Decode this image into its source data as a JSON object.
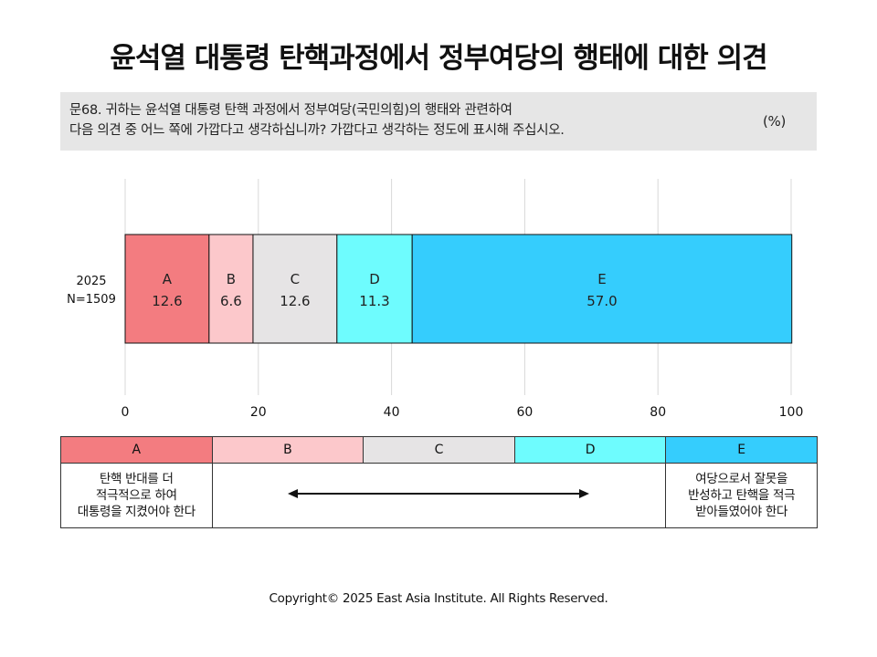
{
  "title": "윤석열 대통령 탄핵과정에서 정부여당의 행태에 대한 의견",
  "question": {
    "line1": "문68. 귀하는 윤석열 대통령 탄핵 과정에서 정부여당(국민의힘)의 행태와 관련하여",
    "line2": "다음 의견 중 어느 쪽에 가깝다고 생각하십니까? 가깝다고 생각하는 정도에 표시해 주십시오.",
    "unit": "(%)"
  },
  "chart_data": {
    "type": "bar",
    "orientation": "horizontal-stacked",
    "categories": [
      "2025\nN=1509"
    ],
    "category_lines": [
      "2025",
      "N=1509"
    ],
    "series": [
      {
        "name": "A",
        "values": [
          12.6
        ],
        "color": "#f37c80"
      },
      {
        "name": "B",
        "values": [
          6.6
        ],
        "color": "#fcc8cb"
      },
      {
        "name": "C",
        "values": [
          12.6
        ],
        "color": "#e6e4e5"
      },
      {
        "name": "D",
        "values": [
          11.3
        ],
        "color": "#6efcfe"
      },
      {
        "name": "E",
        "values": [
          57.0
        ],
        "color": "#35cdfd"
      }
    ],
    "value_labels": [
      "12.6",
      "6.6",
      "12.6",
      "11.3",
      "57.0"
    ],
    "xlim": [
      0,
      100
    ],
    "xticks": [
      0,
      20,
      40,
      60,
      80,
      100
    ],
    "xtick_labels": [
      "0",
      "20",
      "40",
      "60",
      "80",
      "100"
    ],
    "grid": true,
    "legend": "bottom-table"
  },
  "legend_table": {
    "headers": [
      "A",
      "B",
      "C",
      "D",
      "E"
    ],
    "colors": [
      "#f37c80",
      "#fcc8cb",
      "#e6e4e5",
      "#6efcfe",
      "#35cdfd"
    ],
    "left_text": [
      "탄핵 반대를 더",
      "적극적으로 하여",
      "대통령을 지켰어야 한다"
    ],
    "right_text": [
      "여당으로서 잘못을",
      "반성하고 탄핵을 적극",
      "받아들였어야 한다"
    ],
    "arrow_icon": "double-arrow-icon"
  },
  "copyright": "Copyright© 2025 East Asia Institute. All Rights Reserved."
}
